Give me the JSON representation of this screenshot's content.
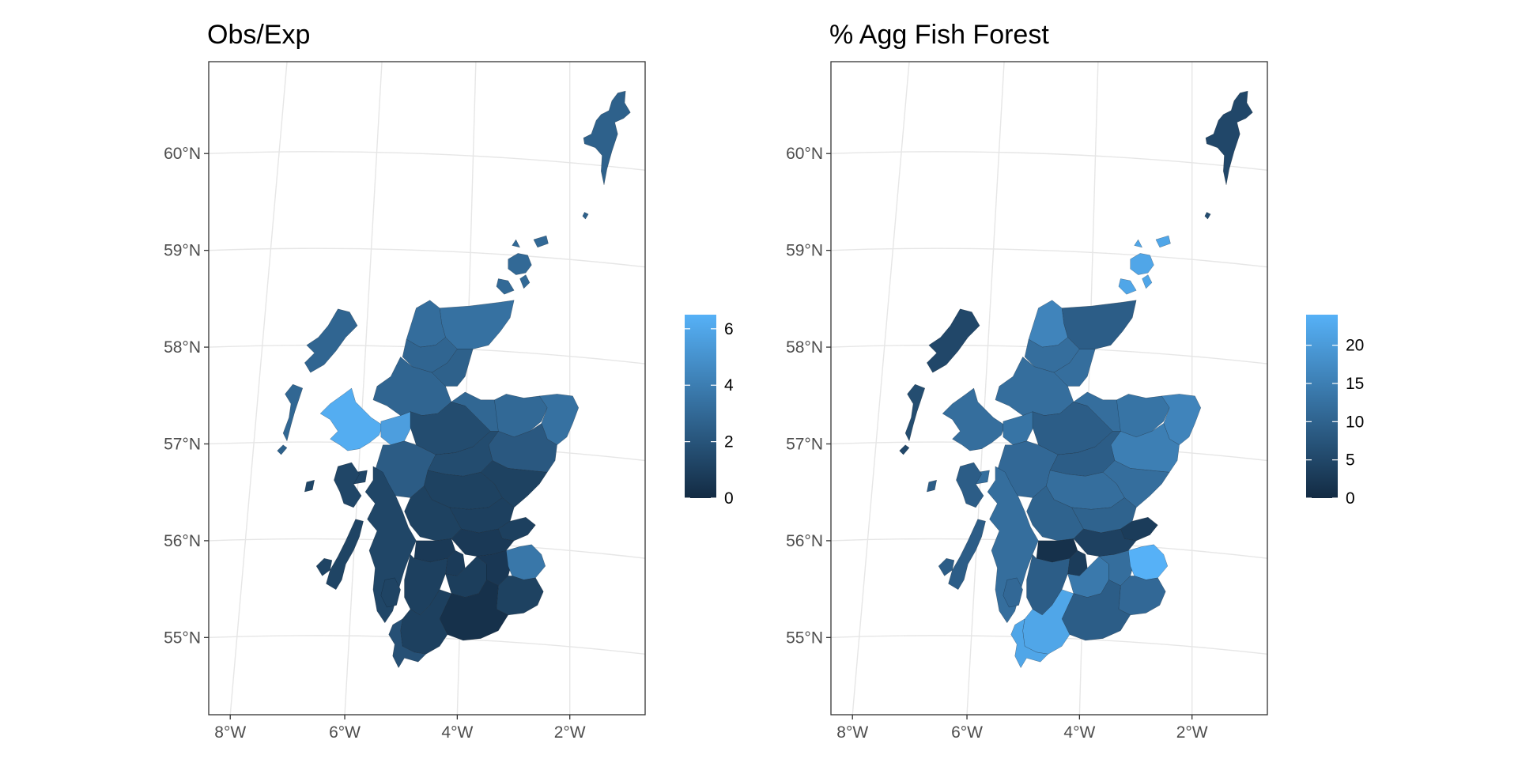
{
  "panels": [
    {
      "title": "Obs/Exp",
      "lat_labels": [
        "60°N",
        "59°N",
        "58°N",
        "57°N",
        "56°N",
        "55°N"
      ],
      "lon_labels": [
        "8°W",
        "6°W",
        "4°W",
        "2°W"
      ],
      "legend": {
        "ticks": [
          "0",
          "2",
          "4",
          "6"
        ],
        "min": 0,
        "max": 6.5,
        "low_color": "#132B43",
        "high_color": "#56B1F7"
      },
      "regions": [
        {
          "id": "shetland",
          "value": 2.6
        },
        {
          "id": "fair-isle",
          "value": 2.6
        },
        {
          "id": "orkney",
          "value": 3.0
        },
        {
          "id": "lewis-harris",
          "value": 2.8
        },
        {
          "id": "uists",
          "value": 2.9
        },
        {
          "id": "barra",
          "value": 2.6
        },
        {
          "id": "skye",
          "value": 6.3
        },
        {
          "id": "lochalsh",
          "value": 5.6
        },
        {
          "id": "caithness",
          "value": 3.4
        },
        {
          "id": "sutherland-north",
          "value": 3.2
        },
        {
          "id": "sutherland-west",
          "value": 2.8
        },
        {
          "id": "ross-west",
          "value": 2.8
        },
        {
          "id": "ross-east",
          "value": 2.6
        },
        {
          "id": "inverness",
          "value": 1.6
        },
        {
          "id": "moray",
          "value": 2.9
        },
        {
          "id": "banff",
          "value": 3.0
        },
        {
          "id": "buchan",
          "value": 3.4
        },
        {
          "id": "aberdeen",
          "value": 2.2
        },
        {
          "id": "lochaber",
          "value": 2.4
        },
        {
          "id": "badenoch",
          "value": 1.6
        },
        {
          "id": "mearns",
          "value": 1.1
        },
        {
          "id": "atholl",
          "value": 1.1
        },
        {
          "id": "tayside",
          "value": 1.0
        },
        {
          "id": "fife",
          "value": 1.0
        },
        {
          "id": "stirling",
          "value": 1.1
        },
        {
          "id": "argyll",
          "value": 1.3
        },
        {
          "id": "mull",
          "value": 1.3
        },
        {
          "id": "islay-jura",
          "value": 1.2
        },
        {
          "id": "arran",
          "value": 1.2
        },
        {
          "id": "glasgow",
          "value": 0.7
        },
        {
          "id": "clyde-valley",
          "value": 0.8
        },
        {
          "id": "lothian",
          "value": 0.7
        },
        {
          "id": "ayrshire",
          "value": 1.0
        },
        {
          "id": "upper-clyde",
          "value": 0.9
        },
        {
          "id": "peebles",
          "value": 0.6
        },
        {
          "id": "berwick",
          "value": 3.7
        },
        {
          "id": "roxburgh",
          "value": 1.1
        },
        {
          "id": "dumfries",
          "value": 0.3
        },
        {
          "id": "galloway",
          "value": 1.0
        },
        {
          "id": "wigtown",
          "value": 1.8
        }
      ]
    },
    {
      "title": "% Agg Fish Forest",
      "lat_labels": [
        "60°N",
        "59°N",
        "58°N",
        "57°N",
        "56°N",
        "55°N"
      ],
      "lon_labels": [
        "8°W",
        "6°W",
        "4°W",
        "2°W"
      ],
      "legend": {
        "ticks": [
          "0",
          "5",
          "10",
          "15",
          "20"
        ],
        "min": 0,
        "max": 24,
        "low_color": "#132B43",
        "high_color": "#56B1F7"
      },
      "regions": [
        {
          "id": "shetland",
          "value": 5
        },
        {
          "id": "fair-isle",
          "value": 6
        },
        {
          "id": "orkney",
          "value": 22
        },
        {
          "id": "lewis-harris",
          "value": 5
        },
        {
          "id": "uists",
          "value": 6
        },
        {
          "id": "barra",
          "value": 5
        },
        {
          "id": "skye",
          "value": 12
        },
        {
          "id": "lochalsh",
          "value": 13
        },
        {
          "id": "caithness",
          "value": 9
        },
        {
          "id": "sutherland-north",
          "value": 16
        },
        {
          "id": "sutherland-west",
          "value": 12
        },
        {
          "id": "ross-west",
          "value": 12
        },
        {
          "id": "ross-east",
          "value": 12
        },
        {
          "id": "inverness",
          "value": 9
        },
        {
          "id": "moray",
          "value": 12
        },
        {
          "id": "banff",
          "value": 13
        },
        {
          "id": "buchan",
          "value": 16
        },
        {
          "id": "aberdeen",
          "value": 15
        },
        {
          "id": "lochaber",
          "value": 11
        },
        {
          "id": "badenoch",
          "value": 9
        },
        {
          "id": "mearns",
          "value": 12
        },
        {
          "id": "atholl",
          "value": 12
        },
        {
          "id": "tayside",
          "value": 10
        },
        {
          "id": "fife",
          "value": 3
        },
        {
          "id": "stirling",
          "value": 10
        },
        {
          "id": "argyll",
          "value": 12
        },
        {
          "id": "mull",
          "value": 9
        },
        {
          "id": "islay-jura",
          "value": 9
        },
        {
          "id": "arran",
          "value": 11
        },
        {
          "id": "glasgow",
          "value": 1
        },
        {
          "id": "clyde-valley",
          "value": 3
        },
        {
          "id": "lothian",
          "value": 4
        },
        {
          "id": "ayrshire",
          "value": 9
        },
        {
          "id": "upper-clyde",
          "value": 14
        },
        {
          "id": "peebles",
          "value": 12
        },
        {
          "id": "berwick",
          "value": 24
        },
        {
          "id": "roxburgh",
          "value": 11
        },
        {
          "id": "dumfries",
          "value": 9
        },
        {
          "id": "galloway",
          "value": 22
        },
        {
          "id": "wigtown",
          "value": 22
        }
      ]
    }
  ]
}
